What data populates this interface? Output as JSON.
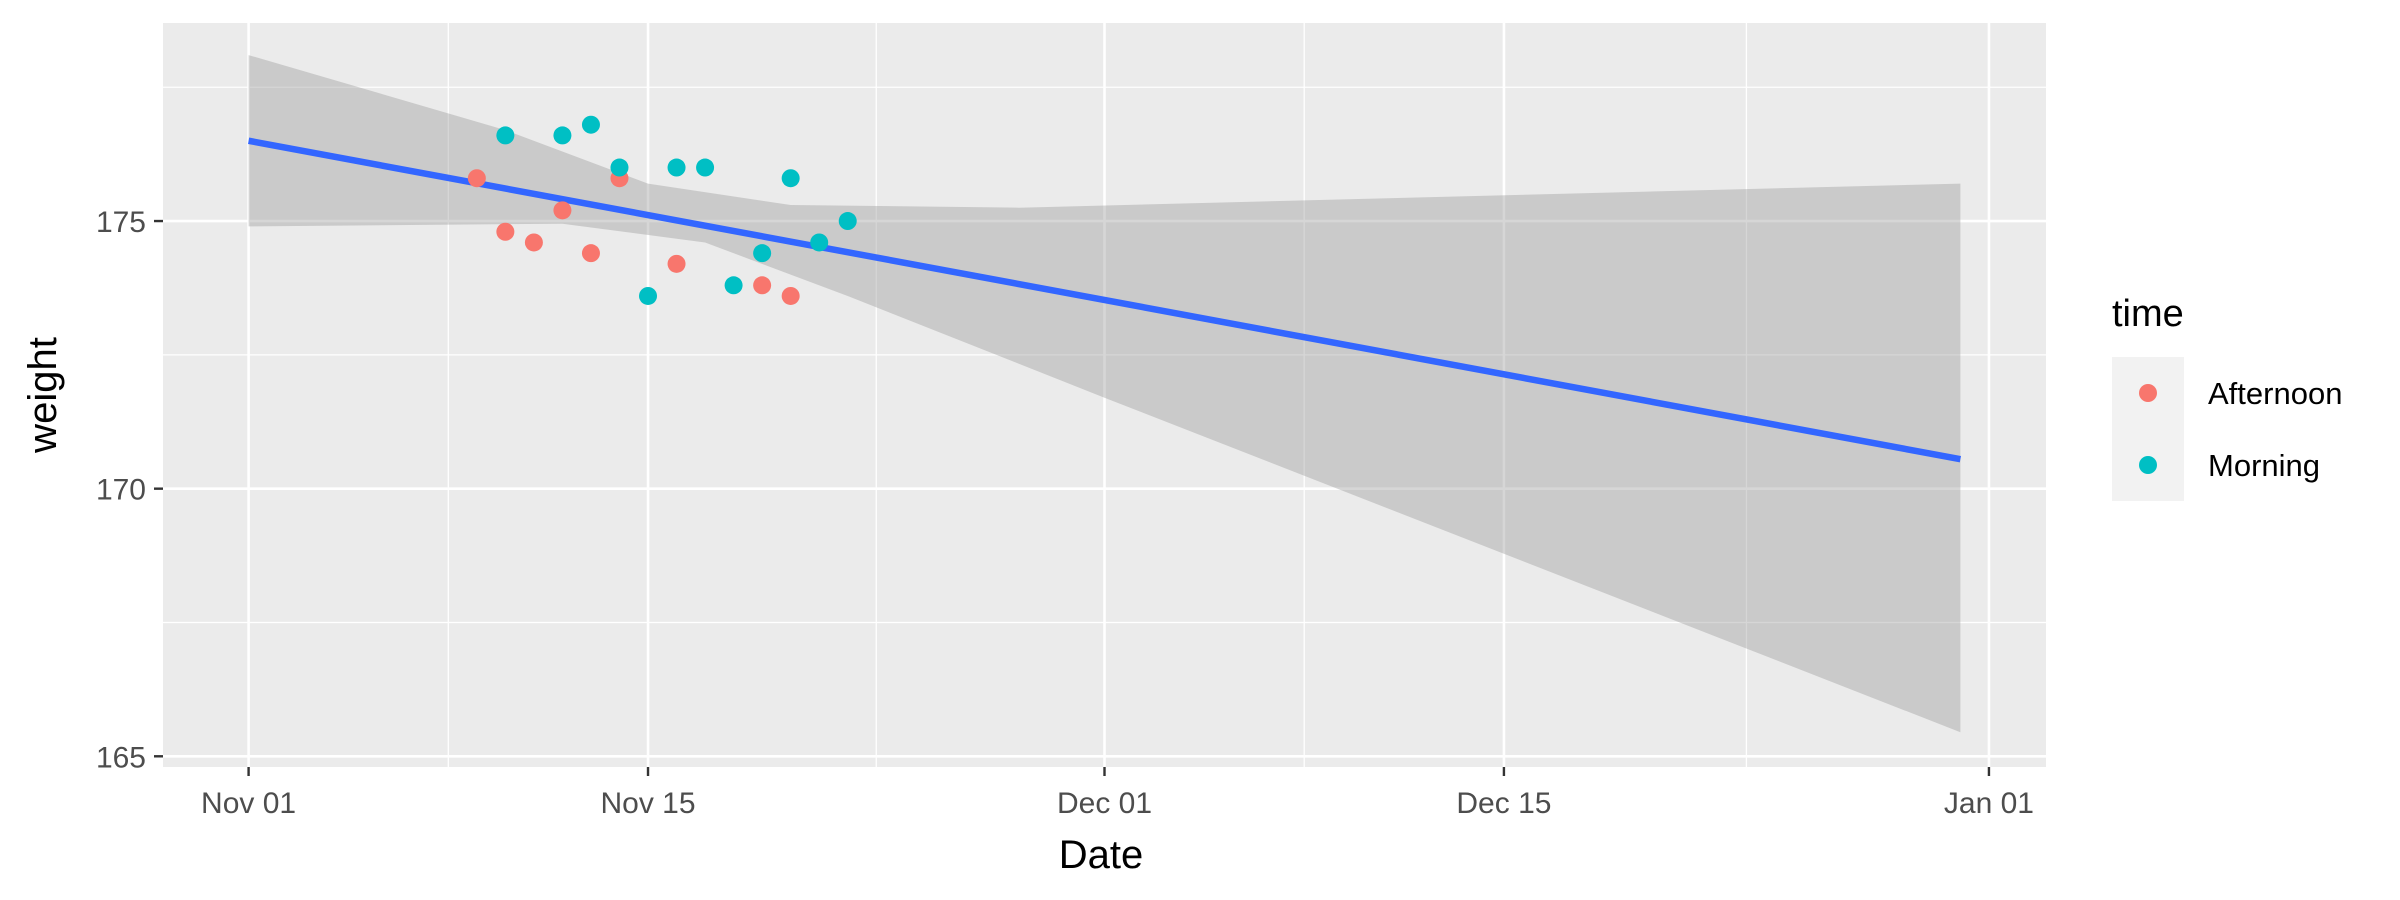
{
  "chart_data": {
    "type": "scatter",
    "xlabel": "Date",
    "ylabel": "weight",
    "x_ticks": [
      "Nov 01",
      "Nov 15",
      "Dec 01",
      "Dec 15",
      "Jan 01"
    ],
    "x_tick_dates": [
      "2020-11-01",
      "2020-11-15",
      "2020-12-01",
      "2020-12-15",
      "2021-01-01"
    ],
    "xlim": [
      "2020-10-29",
      "2021-01-03"
    ],
    "y_ticks": [
      165,
      170,
      175
    ],
    "ylim": [
      164.8,
      178.7
    ],
    "grid": true,
    "legend": {
      "title": "time",
      "position": "right",
      "entries": [
        {
          "label": "Afternoon",
          "color": "#F8766D"
        },
        {
          "label": "Morning",
          "color": "#00BFC4"
        }
      ]
    },
    "series": [
      {
        "name": "Afternoon",
        "color": "#F8766D",
        "points": [
          {
            "x": "2020-11-09",
            "y": 175.8
          },
          {
            "x": "2020-11-10",
            "y": 174.8
          },
          {
            "x": "2020-11-11",
            "y": 174.6
          },
          {
            "x": "2020-11-12",
            "y": 175.2
          },
          {
            "x": "2020-11-13",
            "y": 174.4
          },
          {
            "x": "2020-11-14",
            "y": 175.8
          },
          {
            "x": "2020-11-16",
            "y": 174.2
          },
          {
            "x": "2020-11-19",
            "y": 173.8
          },
          {
            "x": "2020-11-20",
            "y": 173.6
          }
        ]
      },
      {
        "name": "Morning",
        "color": "#00BFC4",
        "points": [
          {
            "x": "2020-11-10",
            "y": 176.6
          },
          {
            "x": "2020-11-12",
            "y": 176.6
          },
          {
            "x": "2020-11-13",
            "y": 176.8
          },
          {
            "x": "2020-11-14",
            "y": 176.0
          },
          {
            "x": "2020-11-15",
            "y": 173.6
          },
          {
            "x": "2020-11-16",
            "y": 176.0
          },
          {
            "x": "2020-11-17",
            "y": 176.0
          },
          {
            "x": "2020-11-18",
            "y": 173.8
          },
          {
            "x": "2020-11-19",
            "y": 174.4
          },
          {
            "x": "2020-11-20",
            "y": 175.8
          },
          {
            "x": "2020-11-21",
            "y": 174.6
          },
          {
            "x": "2020-11-22",
            "y": 175.0
          }
        ]
      }
    ],
    "trend_line": {
      "color": "#3366FF",
      "points": [
        {
          "x": "2020-11-01",
          "y": 176.5
        },
        {
          "x": "2020-12-31",
          "y": 170.55
        }
      ]
    },
    "confidence_band": {
      "color": "#999999",
      "upper": [
        {
          "x": "2020-11-01",
          "y": 178.1
        },
        {
          "x": "2020-11-10",
          "y": 176.7
        },
        {
          "x": "2020-11-15",
          "y": 175.7
        },
        {
          "x": "2020-11-20",
          "y": 175.3
        },
        {
          "x": "2020-11-28",
          "y": 175.25
        },
        {
          "x": "2020-12-31",
          "y": 175.7
        }
      ],
      "lower": [
        {
          "x": "2020-12-31",
          "y": 165.45
        },
        {
          "x": "2020-12-01",
          "y": 171.7
        },
        {
          "x": "2020-11-22",
          "y": 173.6
        },
        {
          "x": "2020-11-17",
          "y": 174.6
        },
        {
          "x": "2020-11-12",
          "y": 174.95
        },
        {
          "x": "2020-11-01",
          "y": 174.9
        }
      ]
    }
  }
}
